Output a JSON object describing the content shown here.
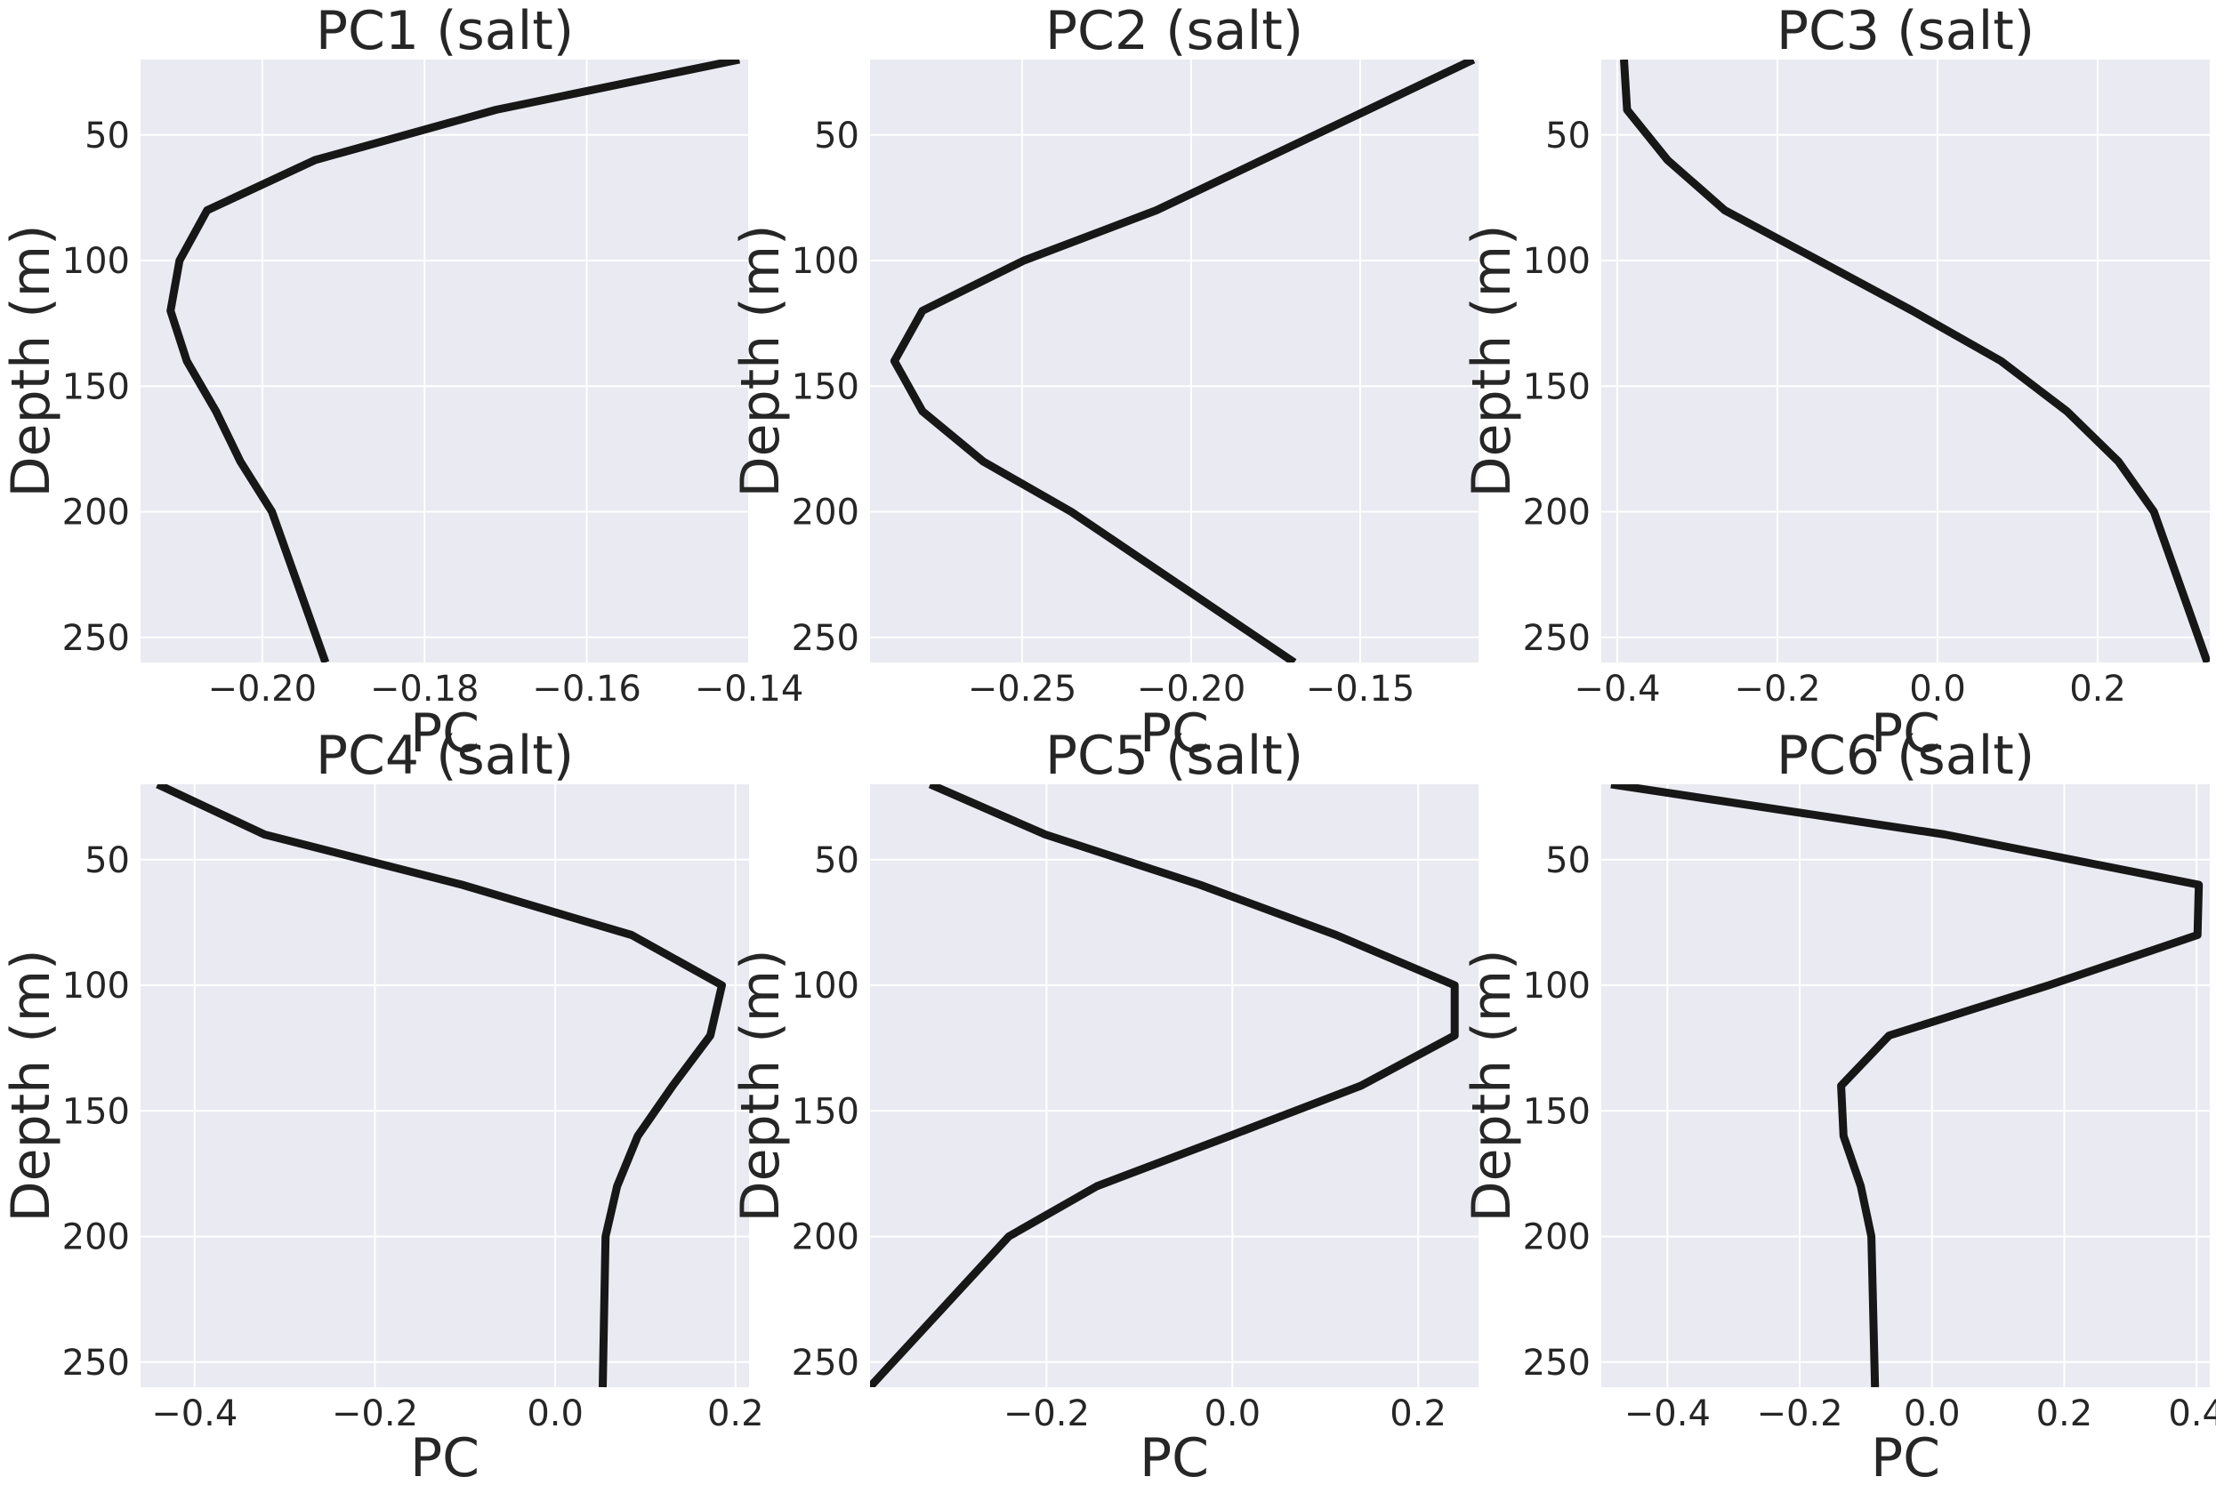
{
  "figure": {
    "background": "#ffffff",
    "plot_background": "#eaeaf2",
    "grid_color": "#ffffff",
    "line_color": "#171717"
  },
  "chart_data": [
    {
      "type": "line",
      "orientation": "vertical-profile",
      "title": "PC1 (salt)",
      "xlabel": "PC",
      "ylabel": "Depth (m)",
      "xlim": [
        -0.215,
        -0.14
      ],
      "ylim": [
        260,
        20
      ],
      "y_inverted": true,
      "xticks": [
        -0.2,
        -0.18,
        -0.16,
        -0.14
      ],
      "xtick_labels": [
        "−0.20",
        "−0.18",
        "−0.16",
        "−0.14"
      ],
      "yticks": [
        50,
        100,
        150,
        200,
        250
      ],
      "ytick_labels": [
        "50",
        "100",
        "150",
        "200",
        "250"
      ],
      "grid": true,
      "series": [
        {
          "x": [
            -0.1412,
            -0.1712,
            -0.1935,
            -0.2068,
            -0.2102,
            -0.2113,
            -0.2093,
            -0.2057,
            -0.2027,
            -0.1988,
            -0.1922
          ],
          "y": [
            20,
            40,
            60,
            80,
            100,
            120,
            140,
            160,
            180,
            200,
            260
          ]
        }
      ]
    },
    {
      "type": "line",
      "orientation": "vertical-profile",
      "title": "PC2 (salt)",
      "xlabel": "PC",
      "ylabel": "Depth (m)",
      "xlim": [
        -0.295,
        -0.115
      ],
      "ylim": [
        260,
        20
      ],
      "y_inverted": true,
      "xticks": [
        -0.25,
        -0.2,
        -0.15
      ],
      "xtick_labels": [
        "−0.25",
        "−0.20",
        "−0.15"
      ],
      "yticks": [
        50,
        100,
        150,
        200,
        250
      ],
      "ytick_labels": [
        "50",
        "100",
        "150",
        "200",
        "250"
      ],
      "grid": true,
      "series": [
        {
          "x": [
            -0.1165,
            -0.1477,
            -0.179,
            -0.2103,
            -0.2495,
            -0.2795,
            -0.2878,
            -0.2795,
            -0.2615,
            -0.2355,
            -0.1695
          ],
          "y": [
            20,
            40,
            60,
            80,
            100,
            120,
            140,
            160,
            180,
            200,
            260
          ]
        }
      ]
    },
    {
      "type": "line",
      "orientation": "vertical-profile",
      "title": "PC3 (salt)",
      "xlabel": "PC",
      "ylabel": "Depth (m)",
      "xlim": [
        -0.42,
        0.34
      ],
      "ylim": [
        260,
        20
      ],
      "y_inverted": true,
      "xticks": [
        -0.4,
        -0.2,
        0.0,
        0.2
      ],
      "xtick_labels": [
        "−0.4",
        "−0.2",
        "0.0",
        "0.2"
      ],
      "yticks": [
        50,
        100,
        150,
        200,
        250
      ],
      "ytick_labels": [
        "50",
        "100",
        "150",
        "200",
        "250"
      ],
      "grid": true,
      "series": [
        {
          "x": [
            -0.3917,
            -0.3878,
            -0.3372,
            -0.2658,
            -0.1482,
            -0.0314,
            0.0792,
            0.1616,
            0.2259,
            0.2702,
            0.337
          ],
          "y": [
            20,
            40,
            60,
            80,
            100,
            120,
            140,
            160,
            180,
            200,
            260
          ]
        }
      ]
    },
    {
      "type": "line",
      "orientation": "vertical-profile",
      "title": "PC4 (salt)",
      "xlabel": "PC",
      "ylabel": "Depth (m)",
      "xlim": [
        -0.46,
        0.215
      ],
      "ylim": [
        260,
        20
      ],
      "y_inverted": true,
      "xticks": [
        -0.4,
        -0.2,
        0.0,
        0.2
      ],
      "xtick_labels": [
        "−0.4",
        "−0.2",
        "0.0",
        "0.2"
      ],
      "yticks": [
        50,
        100,
        150,
        200,
        250
      ],
      "ytick_labels": [
        "50",
        "100",
        "150",
        "200",
        "250"
      ],
      "grid": true,
      "series": [
        {
          "x": [
            -0.4412,
            -0.3224,
            -0.1034,
            0.0847,
            0.1849,
            0.1721,
            0.1303,
            0.0915,
            0.0687,
            0.0558,
            0.0527
          ],
          "y": [
            20,
            40,
            60,
            80,
            100,
            120,
            140,
            160,
            180,
            200,
            260
          ]
        }
      ]
    },
    {
      "type": "line",
      "orientation": "vertical-profile",
      "title": "PC5 (salt)",
      "xlabel": "PC",
      "ylabel": "Depth (m)",
      "xlim": [
        -0.39,
        0.265
      ],
      "ylim": [
        260,
        20
      ],
      "y_inverted": true,
      "xticks": [
        -0.2,
        0.0,
        0.2
      ],
      "xtick_labels": [
        "−0.2",
        "0.0",
        "0.2"
      ],
      "yticks": [
        50,
        100,
        150,
        200,
        250
      ],
      "ytick_labels": [
        "50",
        "100",
        "150",
        "200",
        "250"
      ],
      "grid": true,
      "series": [
        {
          "x": [
            -0.3253,
            -0.2013,
            -0.0348,
            0.1118,
            0.2393,
            0.2393,
            0.1384,
            -0.0028,
            -0.1458,
            -0.2406,
            -0.3903
          ],
          "y": [
            20,
            40,
            60,
            80,
            100,
            120,
            140,
            160,
            180,
            200,
            260
          ]
        }
      ]
    },
    {
      "type": "line",
      "orientation": "vertical-profile",
      "title": "PC6 (salt)",
      "xlabel": "PC",
      "ylabel": "Depth (m)",
      "xlim": [
        -0.5,
        0.42
      ],
      "ylim": [
        260,
        20
      ],
      "y_inverted": true,
      "xticks": [
        -0.4,
        -0.2,
        0.0,
        0.2,
        0.4
      ],
      "xtick_labels": [
        "−0.4",
        "−0.2",
        "0.0",
        "0.2",
        "0.4"
      ],
      "yticks": [
        50,
        100,
        150,
        200,
        250
      ],
      "ytick_labels": [
        "50",
        "100",
        "150",
        "200",
        "250"
      ],
      "grid": true,
      "series": [
        {
          "x": [
            -0.4852,
            0.0198,
            0.4034,
            0.4015,
            0.1766,
            -0.0647,
            -0.1374,
            -0.1337,
            -0.1076,
            -0.0917,
            -0.0862
          ],
          "y": [
            20,
            40,
            60,
            80,
            100,
            120,
            140,
            160,
            180,
            200,
            260
          ]
        }
      ]
    }
  ]
}
